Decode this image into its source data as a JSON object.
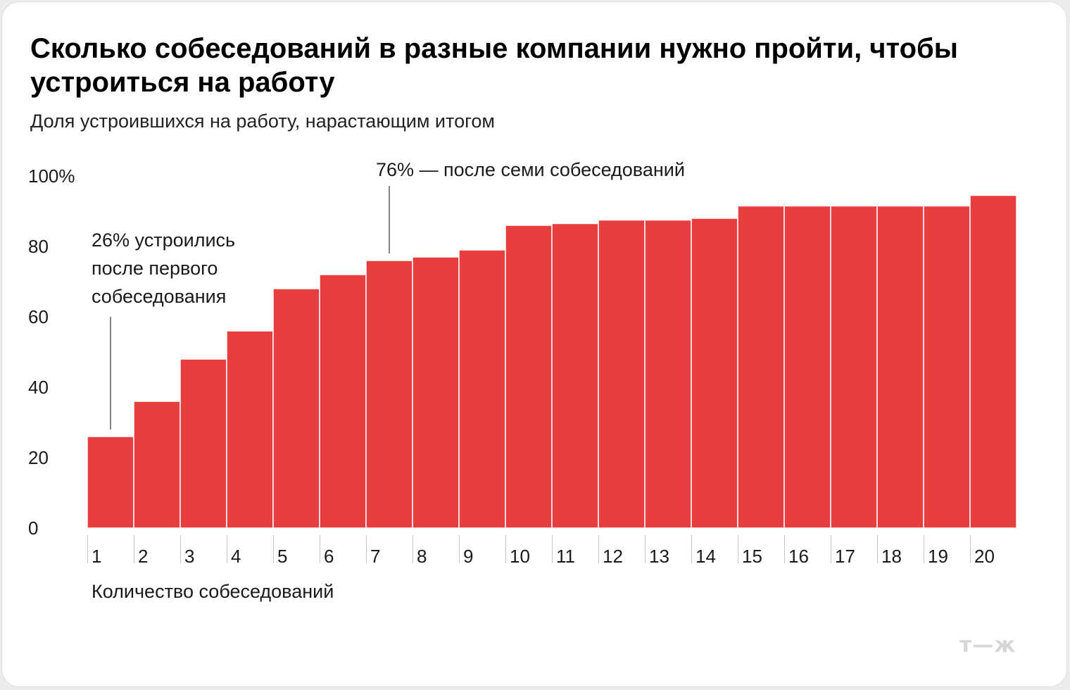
{
  "chart_data": {
    "type": "bar",
    "title": "Сколько собеседований в разные компании нужно пройти, чтобы устроиться на работу",
    "subtitle": "Доля устроившихся на работу, нарастающим итогом",
    "xlabel": "Количество собеседований",
    "ylabel": "",
    "ylim": [
      0,
      100
    ],
    "y_ticks": [
      "0",
      "20",
      "40",
      "60",
      "80",
      "100%"
    ],
    "categories": [
      "1",
      "2",
      "3",
      "4",
      "5",
      "6",
      "7",
      "8",
      "9",
      "10",
      "11",
      "12",
      "13",
      "14",
      "15",
      "16",
      "17",
      "18",
      "19",
      "20"
    ],
    "values": [
      26,
      36,
      48,
      56,
      68,
      72,
      76,
      77,
      79,
      86,
      86.5,
      87.5,
      87.5,
      88,
      91.5,
      91.5,
      91.5,
      91.5,
      91.5,
      94.5
    ],
    "bar_color": "#e83d3f",
    "grid": false,
    "annotations": [
      {
        "lines": [
          "26% устроились",
          "после первого",
          "собеседования"
        ],
        "category": "1"
      },
      {
        "lines": [
          "76% — после семи собеседований"
        ],
        "category": "7"
      }
    ]
  },
  "logo_text": "т—ж"
}
